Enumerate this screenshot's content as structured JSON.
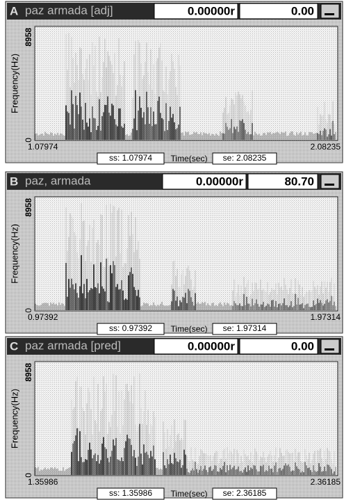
{
  "panels": [
    {
      "letter": "A",
      "title": "paz armada [adj]",
      "field1": "0.00000r",
      "field2": "0.00",
      "y_label": "Frequency(Hz)",
      "y_top": "8958",
      "y_bottom": "0",
      "x_start": "1.07974",
      "x_end": "2.08235",
      "ss": "ss: 1.07974",
      "time_label": "Time(sec)",
      "se": "se: 2.08235"
    },
    {
      "letter": "B",
      "title": "paz, armada",
      "field1": "0.00000r",
      "field2": "80.70",
      "y_label": "Frequency(Hz)",
      "y_top": "8958",
      "y_bottom": "0",
      "x_start": "0.97392",
      "x_end": "1.97314",
      "ss": "ss: 0.97392",
      "time_label": "Time(sec)",
      "se": "se: 1.97314"
    },
    {
      "letter": "C",
      "title": "paz armada [pred]",
      "field1": "0.00000r",
      "field2": "0.00",
      "y_label": "Frequency(Hz)",
      "y_top": "8958",
      "y_bottom": "0",
      "x_start": "1.35986",
      "x_end": "2.36185",
      "ss": "ss: 1.35986",
      "time_label": "Time(sec)",
      "se": "se: 2.36185"
    }
  ]
}
